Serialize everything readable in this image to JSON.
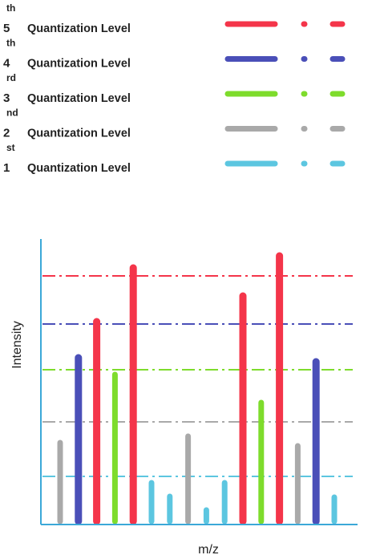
{
  "chart_data": {
    "type": "bar",
    "xlabel": "m/z",
    "ylabel": "Intensity",
    "grid": false,
    "legend_position": "top",
    "levels": [
      {
        "ordinal": "5",
        "suffix": "th",
        "label": "Quantization Level",
        "color": "#f4354a",
        "value": 310
      },
      {
        "ordinal": "4",
        "suffix": "th",
        "label": "Quantization Level",
        "color": "#4a4fb8",
        "value": 250
      },
      {
        "ordinal": "3",
        "suffix": "rd",
        "label": "Quantization Level",
        "color": "#7edc2c",
        "value": 193
      },
      {
        "ordinal": "2",
        "suffix": "nd",
        "label": "Quantization Level",
        "color": "#a9a9a9",
        "value": 128
      },
      {
        "ordinal": "1",
        "suffix": "st",
        "label": "Quantization Level",
        "color": "#5cc6e0",
        "value": 60
      }
    ],
    "bars": [
      {
        "level": 2,
        "value": 102
      },
      {
        "level": 4,
        "value": 208
      },
      {
        "level": 5,
        "value": 253
      },
      {
        "level": 3,
        "value": 187
      },
      {
        "level": 5,
        "value": 320
      },
      {
        "level": 1,
        "value": 52
      },
      {
        "level": 1,
        "value": 35
      },
      {
        "level": 2,
        "value": 110
      },
      {
        "level": 1,
        "value": 18
      },
      {
        "level": 1,
        "value": 52
      },
      {
        "level": 5,
        "value": 285
      },
      {
        "level": 3,
        "value": 152
      },
      {
        "level": 5,
        "value": 335
      },
      {
        "level": 2,
        "value": 98
      },
      {
        "level": 4,
        "value": 203
      },
      {
        "level": 1,
        "value": 34
      }
    ]
  }
}
